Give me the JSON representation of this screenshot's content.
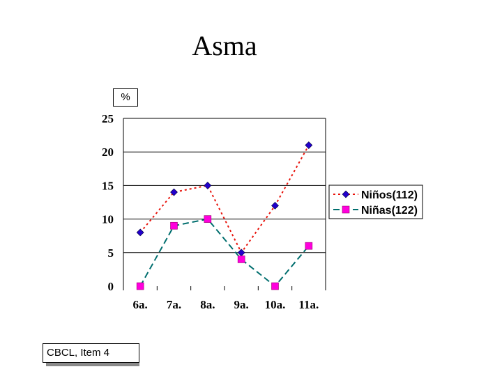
{
  "page": {
    "title": "Asma",
    "unit_label": "%",
    "source_note": "CBCL, Item 4"
  },
  "chart_data": {
    "type": "line",
    "title": "Asma",
    "ylabel": "%",
    "xlabel": "",
    "categories": [
      "6a.",
      "7a.",
      "8a.",
      "9a.",
      "10a.",
      "11a."
    ],
    "ylim": [
      0,
      25
    ],
    "yticks": [
      0,
      5,
      10,
      15,
      20,
      25
    ],
    "grid": true,
    "legend": "right",
    "series": [
      {
        "name": "Niños(112)",
        "values": [
          8,
          14,
          15,
          5,
          12,
          21
        ],
        "color": "#e8140c",
        "marker": "diamond",
        "marker_color": "#2200cc",
        "dash": "dotted"
      },
      {
        "name": "Niñas(122)",
        "values": [
          0,
          9,
          10,
          4,
          0,
          6
        ],
        "color": "#006e6e",
        "marker": "square",
        "marker_color": "#ff00dd",
        "dash": "dashed"
      }
    ]
  }
}
